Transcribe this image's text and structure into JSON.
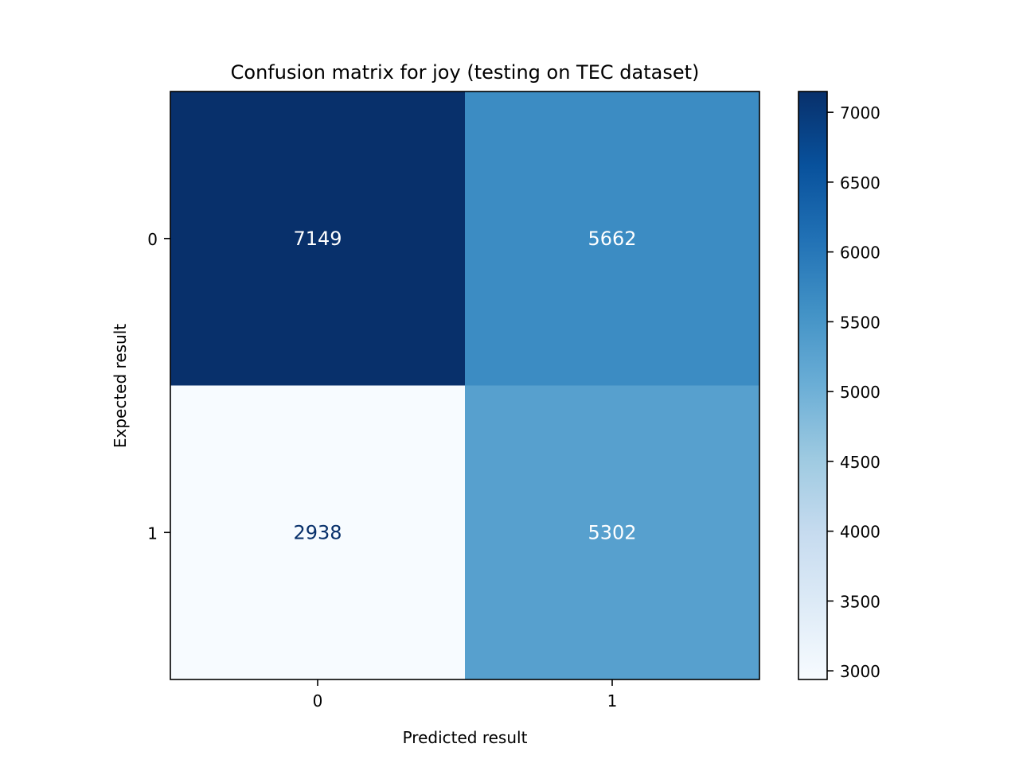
{
  "chart_data": {
    "type": "heatmap",
    "title": "Confusion matrix for joy (testing on TEC dataset)",
    "xlabel": "Predicted result",
    "ylabel": "Expected result",
    "x_categories": [
      "0",
      "1"
    ],
    "y_categories": [
      "0",
      "1"
    ],
    "matrix": [
      [
        7149,
        5662
      ],
      [
        2938,
        5302
      ]
    ],
    "colormap": "Blues",
    "colorbar": {
      "ticks": [
        3000,
        3500,
        4000,
        4500,
        5000,
        5500,
        6000,
        6500,
        7000
      ],
      "min": 2938,
      "max": 7149
    },
    "colors": {
      "light_text": "#ffffff",
      "dark_text": "#08306b"
    }
  }
}
